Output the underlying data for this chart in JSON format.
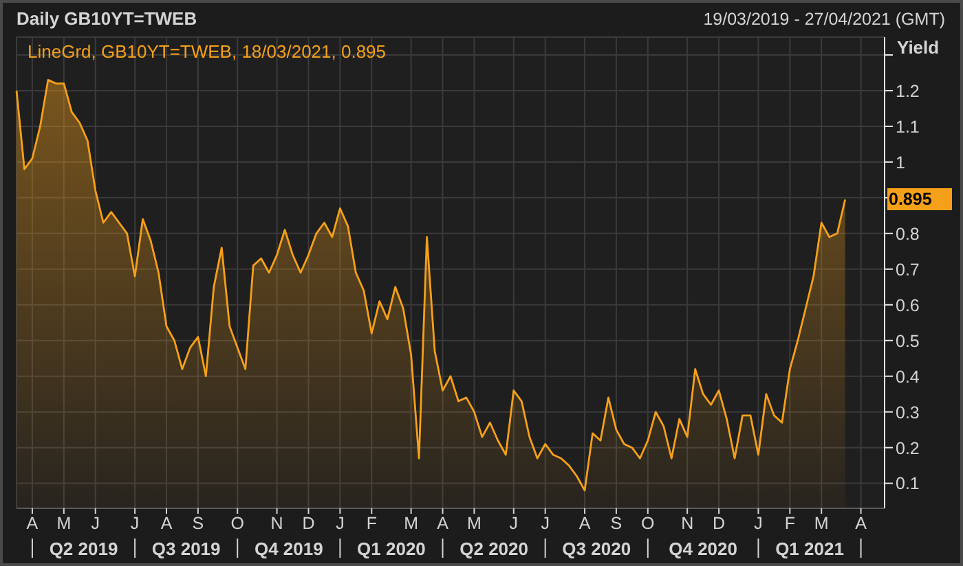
{
  "chart_data": {
    "type": "area",
    "title": "Daily GB10YT=TWEB",
    "subtitle": "19/03/2019 - 27/04/2021 (GMT)",
    "ylabel": "Yield",
    "categories": [
      null,
      null,
      "A",
      null,
      null,
      null,
      "M",
      null,
      null,
      null,
      "J",
      null,
      null,
      null,
      null,
      "J",
      null,
      null,
      null,
      "A",
      null,
      null,
      null,
      "S",
      null,
      null,
      null,
      null,
      "O",
      null,
      null,
      null,
      null,
      "N",
      null,
      null,
      null,
      "D",
      null,
      null,
      null,
      "J",
      null,
      null,
      null,
      "F",
      null,
      null,
      null,
      null,
      "M",
      null,
      null,
      null,
      "A",
      null,
      null,
      null,
      "M",
      null,
      null,
      null,
      null,
      "J",
      null,
      null,
      null,
      "J",
      null,
      null,
      null,
      null,
      "A",
      null,
      null,
      null,
      "S",
      null,
      null,
      null,
      "O",
      null,
      null,
      null,
      null,
      "N",
      null,
      null,
      null,
      "D",
      null,
      null,
      null,
      null,
      "J",
      null,
      null,
      null,
      "F",
      null,
      null,
      null,
      "M",
      null,
      null,
      null,
      null,
      "A",
      null,
      null,
      null
    ],
    "series": [
      {
        "name": "LineGrd, GB10YT=TWEB, 18/03/2021, 0.895",
        "color": "#f5a01a",
        "values": [
          1.2,
          0.98,
          1.01,
          1.1,
          1.23,
          1.22,
          1.22,
          1.14,
          1.11,
          1.06,
          0.92,
          0.83,
          0.86,
          0.83,
          0.8,
          0.68,
          0.84,
          0.78,
          0.69,
          0.54,
          0.5,
          0.42,
          0.48,
          0.51,
          0.4,
          0.65,
          0.76,
          0.54,
          0.48,
          0.42,
          0.71,
          0.73,
          0.69,
          0.74,
          0.81,
          0.74,
          0.69,
          0.74,
          0.8,
          0.83,
          0.79,
          0.87,
          0.82,
          0.69,
          0.64,
          0.52,
          0.61,
          0.56,
          0.65,
          0.59,
          0.46,
          0.17,
          0.79,
          0.47,
          0.36,
          0.4,
          0.33,
          0.34,
          0.3,
          0.23,
          0.27,
          0.22,
          0.18,
          0.36,
          0.33,
          0.23,
          0.17,
          0.21,
          0.18,
          0.17,
          0.15,
          0.12,
          0.08,
          0.24,
          0.22,
          0.34,
          0.25,
          0.21,
          0.2,
          0.17,
          0.22,
          0.3,
          0.26,
          0.17,
          0.28,
          0.23,
          0.42,
          0.35,
          0.32,
          0.36,
          0.28,
          0.17,
          0.29,
          0.29,
          0.18,
          0.35,
          0.29,
          0.27,
          0.42,
          0.5,
          0.59,
          0.68,
          0.83,
          0.79,
          0.8,
          0.895,
          null,
          null,
          null,
          null,
          null
        ]
      }
    ],
    "ylim": [
      0.03,
      1.35
    ],
    "yticks": [
      0.1,
      0.2,
      0.3,
      0.4,
      0.5,
      0.6,
      0.7,
      0.8,
      {
        "value": 0.9,
        "label": null
      },
      1,
      1.1,
      1.2,
      {
        "value": 1.3,
        "label": null
      }
    ],
    "annotations": [
      "Q2 2019",
      "Q3 2019",
      "Q4 2019",
      "Q1 2020",
      "Q2 2020",
      "Q3 2020",
      "Q4 2020",
      "Q1 2021",
      "0.895"
    ],
    "grid": true,
    "legend": "top left"
  }
}
